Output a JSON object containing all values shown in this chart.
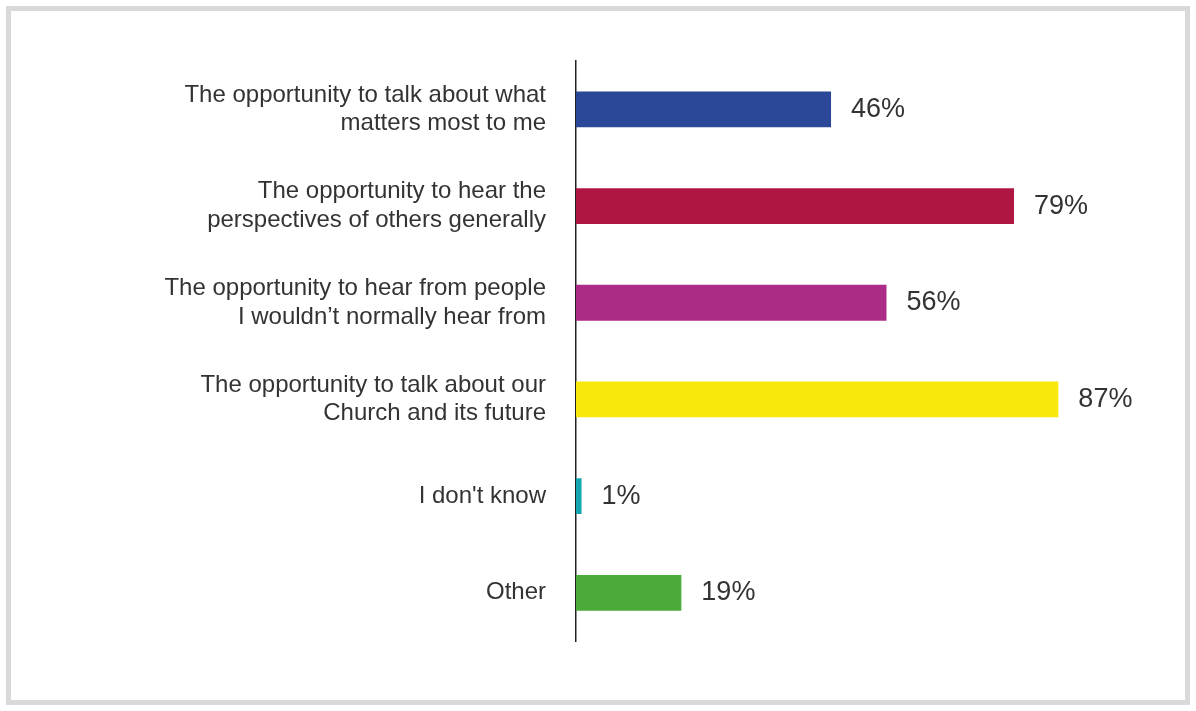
{
  "chart_data": {
    "type": "bar",
    "orientation": "horizontal",
    "categories": [
      "The opportunity to talk about what matters most to me",
      "The opportunity to hear the perspectives of others generally",
      "The opportunity to hear from people I wouldn’t normally hear from",
      "The opportunity to talk about our Church and its future",
      "I don't know",
      "Other"
    ],
    "values": [
      46,
      79,
      56,
      87,
      1,
      19
    ],
    "colors": [
      "#2b4798",
      "#b01642",
      "#ab2b86",
      "#f9e80b",
      "#16a6b2",
      "#4aab3a"
    ],
    "value_labels": [
      "46%",
      "79%",
      "56%",
      "87%",
      "1%",
      "19%"
    ],
    "legend": false
  }
}
